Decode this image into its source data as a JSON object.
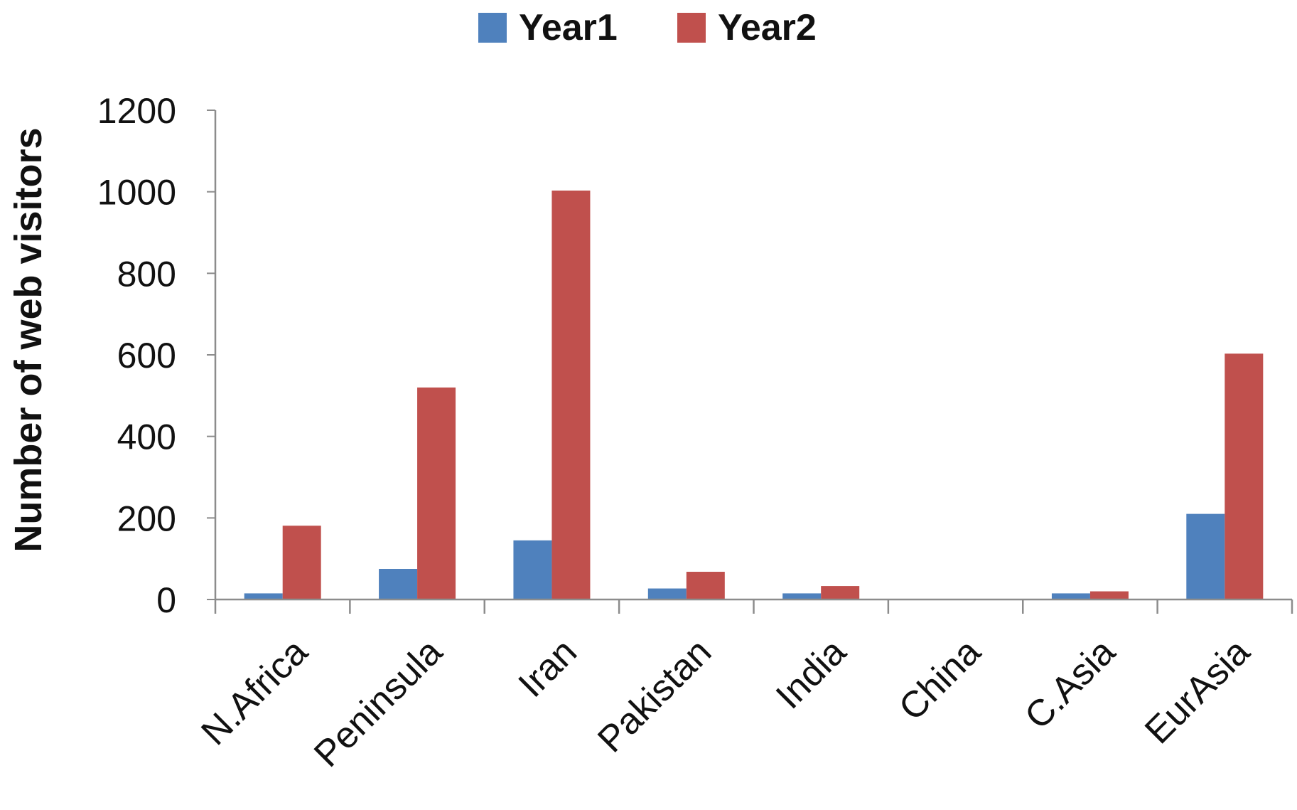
{
  "chart_data": {
    "type": "bar",
    "title": "",
    "xlabel": "",
    "ylabel": "Number of web visitors",
    "ylim": [
      0,
      1200
    ],
    "yticks": [
      0,
      200,
      400,
      600,
      800,
      1000,
      1200
    ],
    "categories": [
      "N.Africa",
      "Peninsula",
      "Iran",
      "Pakistan",
      "India",
      "China",
      "C.Asia",
      "EurAsia"
    ],
    "series": [
      {
        "name": "Year1",
        "color": "#4F81BD",
        "values": [
          15,
          75,
          145,
          27,
          15,
          1,
          15,
          210
        ]
      },
      {
        "name": "Year2",
        "color": "#C0504D",
        "values": [
          181,
          520,
          1003,
          68,
          33,
          1,
          20,
          603
        ]
      }
    ],
    "grid": false,
    "legend_position": "top-center"
  }
}
